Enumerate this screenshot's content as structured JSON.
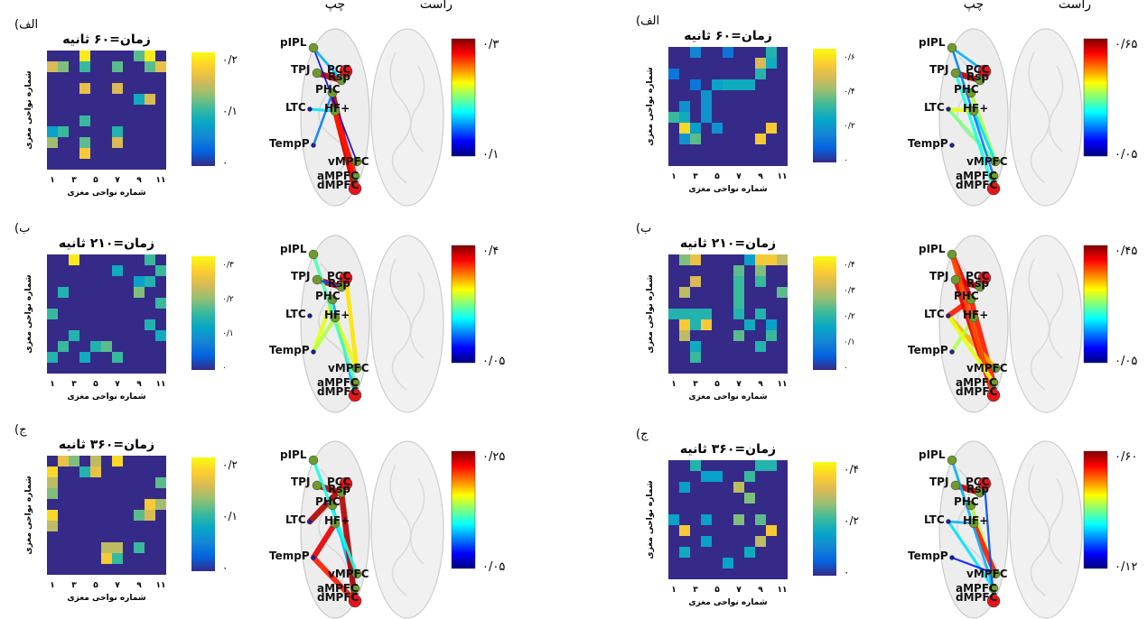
{
  "labels": {
    "ylabel": "شماره نواحی مغزی",
    "xlabel": "شماره نواحی مغزی",
    "right_hemisphere": "راست",
    "left_hemisphere": "چپ",
    "xticks": [
      "۱",
      "۳",
      "۵",
      "۷",
      "۹",
      "۱۱"
    ]
  },
  "regions": [
    "pIPL",
    "PCC",
    "TPJ",
    "Rsp",
    "PHC",
    "LTC",
    "HF+",
    "TempP",
    "vMPFC",
    "aMPFC",
    "dMPFC"
  ],
  "colormaps": {
    "parula": [
      "#352a87",
      "#0363e1",
      "#1485d4",
      "#06a7c6",
      "#38b99e",
      "#92bf73",
      "#d9ba56",
      "#fcce2e",
      "#f9fb0e"
    ],
    "jet": [
      "#00007f",
      "#0000ff",
      "#007fff",
      "#00ffff",
      "#7fff7f",
      "#ffff00",
      "#ff7f00",
      "#ff0000",
      "#7f0000"
    ]
  },
  "chart_data": [
    {
      "type": "heatmap",
      "panel_tag": "(الف",
      "title": "زمان=۶۰ ثانیه",
      "colorbar_ticks": [
        "۰/۲",
        "۰/۱",
        "۰"
      ],
      "cells": [
        [
          0,
          3,
          0.95
        ],
        [
          0,
          8,
          0.55
        ],
        [
          0,
          9,
          0.95
        ],
        [
          1,
          0,
          0.75
        ],
        [
          1,
          1,
          0.6
        ],
        [
          1,
          3,
          0.5
        ],
        [
          1,
          6,
          0.55
        ],
        [
          1,
          9,
          0.55
        ],
        [
          1,
          10,
          0.8
        ],
        [
          3,
          3,
          0.8
        ],
        [
          3,
          6,
          0.75
        ],
        [
          4,
          8,
          0.4
        ],
        [
          4,
          9,
          0.75
        ],
        [
          6,
          3,
          0.5
        ],
        [
          7,
          0,
          0.35
        ],
        [
          7,
          1,
          0.5
        ],
        [
          7,
          6,
          0.45
        ],
        [
          8,
          0,
          0.65
        ],
        [
          8,
          3,
          0.55
        ],
        [
          8,
          6,
          0.75
        ],
        [
          9,
          3,
          0.85
        ]
      ]
    },
    {
      "type": "network",
      "colorbar_max": "۰/۳",
      "colorbar_min": "۰/۱",
      "edges": [
        [
          "TPJ",
          "Rsp",
          0.95
        ],
        [
          "PHC",
          "dMPFC",
          0.97
        ],
        [
          "HF+",
          "dMPFC",
          0.9
        ],
        [
          "LTC",
          "HF+",
          0.35
        ],
        [
          "TempP",
          "PHC",
          0.25
        ],
        [
          "pIPL",
          "vMPFC",
          0.1
        ],
        [
          "pIPL",
          "Rsp",
          0.3
        ],
        [
          "HF+",
          "aMPFC",
          0.85
        ]
      ]
    },
    {
      "type": "heatmap",
      "panel_tag": "(الف",
      "title": "زمان=۶۰ ثانیه",
      "colorbar_ticks": [
        "۰/۶",
        "۰/۴",
        "۰/۲",
        "۰"
      ],
      "cells": [
        [
          0,
          2,
          0.25
        ],
        [
          0,
          5,
          0.2
        ],
        [
          0,
          9,
          0.45
        ],
        [
          1,
          8,
          0.75
        ],
        [
          1,
          9,
          0.4
        ],
        [
          2,
          0,
          0.2
        ],
        [
          2,
          8,
          0.45
        ],
        [
          3,
          2,
          0.2
        ],
        [
          3,
          4,
          0.35
        ],
        [
          3,
          5,
          0.4
        ],
        [
          3,
          6,
          0.4
        ],
        [
          3,
          7,
          0.4
        ],
        [
          4,
          3,
          0.3
        ],
        [
          5,
          1,
          0.3
        ],
        [
          5,
          3,
          0.3
        ],
        [
          6,
          0,
          0.5
        ],
        [
          6,
          1,
          0.4
        ],
        [
          6,
          3,
          0.3
        ],
        [
          7,
          1,
          0.9
        ],
        [
          7,
          2,
          0.35
        ],
        [
          7,
          4,
          0.3
        ],
        [
          7,
          9,
          0.85
        ],
        [
          8,
          1,
          0.3
        ],
        [
          8,
          2,
          0.55
        ],
        [
          8,
          8,
          0.85
        ]
      ]
    },
    {
      "type": "network",
      "colorbar_max": "۰/۶۵",
      "colorbar_min": "۰/۰۵",
      "edges": [
        [
          "TPJ",
          "Rsp",
          0.95
        ],
        [
          "pIPL",
          "PCC",
          0.3
        ],
        [
          "PHC",
          "vMPFC",
          0.55
        ],
        [
          "LTC",
          "vMPFC",
          0.5
        ],
        [
          "TPJ",
          "dMPFC",
          0.4
        ],
        [
          "HF+",
          "vMPFC",
          0.35
        ],
        [
          "pIPL",
          "aMPFC",
          0.25
        ],
        [
          "LTC",
          "HF+",
          0.6
        ]
      ]
    },
    {
      "type": "heatmap",
      "panel_tag": "(ب",
      "title": "زمان=۲۱۰ ثانیه",
      "colorbar_ticks": [
        "۰/۳",
        "۰/۲",
        "۰/۱",
        "۰"
      ],
      "cells": [
        [
          0,
          2,
          0.95
        ],
        [
          0,
          9,
          0.5
        ],
        [
          1,
          6,
          0.4
        ],
        [
          1,
          10,
          0.5
        ],
        [
          2,
          8,
          0.35
        ],
        [
          2,
          9,
          0.45
        ],
        [
          3,
          1,
          0.45
        ],
        [
          3,
          8,
          0.6
        ],
        [
          4,
          10,
          0.5
        ],
        [
          5,
          0,
          0.5
        ],
        [
          6,
          9,
          0.45
        ],
        [
          7,
          2,
          0.45
        ],
        [
          7,
          10,
          0.4
        ],
        [
          8,
          1,
          0.5
        ],
        [
          8,
          4,
          0.45
        ],
        [
          8,
          5,
          0.55
        ],
        [
          9,
          0,
          0.45
        ],
        [
          9,
          3,
          0.4
        ],
        [
          9,
          6,
          0.5
        ]
      ]
    },
    {
      "type": "network",
      "colorbar_max": "۰/۴",
      "colorbar_min": "۰/۰۵",
      "edges": [
        [
          "TPJ",
          "Rsp",
          0.95
        ],
        [
          "PHC",
          "dMPFC",
          0.3
        ],
        [
          "HF+",
          "vMPFC",
          0.6
        ],
        [
          "TempP",
          "PHC",
          0.6
        ],
        [
          "TempP",
          "HF+",
          0.55
        ],
        [
          "pIPL",
          "aMPFC",
          0.45
        ],
        [
          "PCC",
          "vMPFC",
          0.65
        ],
        [
          "TPJ",
          "Rsp",
          0.2
        ]
      ]
    },
    {
      "type": "heatmap",
      "panel_tag": "(ب",
      "title": "زمان=۲۱۰ ثانیه",
      "colorbar_ticks": [
        "۰/۴",
        "۰/۳",
        "۰/۲",
        "۰/۱",
        "۰"
      ],
      "cells": [
        [
          0,
          1,
          0.6
        ],
        [
          0,
          2,
          0.8
        ],
        [
          0,
          7,
          0.35
        ],
        [
          0,
          8,
          0.85
        ],
        [
          0,
          9,
          0.85
        ],
        [
          0,
          10,
          0.7
        ],
        [
          1,
          6,
          0.55
        ],
        [
          1,
          8,
          0.6
        ],
        [
          2,
          2,
          0.75
        ],
        [
          2,
          6,
          0.5
        ],
        [
          2,
          8,
          0.5
        ],
        [
          3,
          1,
          0.7
        ],
        [
          3,
          6,
          0.5
        ],
        [
          3,
          10,
          0.55
        ],
        [
          4,
          6,
          0.5
        ],
        [
          5,
          0,
          0.45
        ],
        [
          5,
          1,
          0.45
        ],
        [
          5,
          2,
          0.45
        ],
        [
          5,
          3,
          0.45
        ],
        [
          5,
          6,
          0.45
        ],
        [
          5,
          8,
          0.45
        ],
        [
          6,
          1,
          0.85
        ],
        [
          6,
          2,
          0.45
        ],
        [
          6,
          3,
          0.85
        ],
        [
          6,
          7,
          0.4
        ],
        [
          6,
          9,
          0.35
        ],
        [
          7,
          1,
          0.7
        ],
        [
          7,
          6,
          0.55
        ],
        [
          7,
          9,
          0.5
        ],
        [
          8,
          2,
          0.4
        ],
        [
          8,
          8,
          0.45
        ],
        [
          9,
          2,
          0.5
        ]
      ]
    },
    {
      "type": "network",
      "colorbar_max": "۰/۴۵",
      "colorbar_min": "۰/۰۵",
      "edges": [
        [
          "TPJ",
          "Rsp",
          0.95
        ],
        [
          "pIPL",
          "PHC",
          0.9
        ],
        [
          "PHC",
          "aMPFC",
          0.85
        ],
        [
          "LTC",
          "vMPFC",
          0.7
        ],
        [
          "LTC",
          "PHC",
          0.85
        ],
        [
          "TempP",
          "HF+",
          0.55
        ],
        [
          "TPJ",
          "dMPFC",
          0.9
        ],
        [
          "pIPL",
          "dMPFC",
          0.8
        ],
        [
          "LTC",
          "aMPFC",
          0.6
        ]
      ]
    },
    {
      "type": "heatmap",
      "panel_tag": "(ج",
      "title": "زمان=۳۶۰ ثانیه",
      "colorbar_ticks": [
        "۰/۲",
        "۰/۱",
        "۰"
      ],
      "cells": [
        [
          0,
          1,
          0.8
        ],
        [
          0,
          2,
          0.6
        ],
        [
          0,
          4,
          0.7
        ],
        [
          0,
          6,
          0.9
        ],
        [
          1,
          0,
          0.9
        ],
        [
          1,
          3,
          0.45
        ],
        [
          1,
          4,
          0.8
        ],
        [
          2,
          0,
          0.7
        ],
        [
          2,
          10,
          0.55
        ],
        [
          3,
          0,
          0.6
        ],
        [
          4,
          9,
          0.85
        ],
        [
          4,
          10,
          0.65
        ],
        [
          5,
          0,
          0.9
        ],
        [
          5,
          8,
          0.55
        ],
        [
          5,
          9,
          0.75
        ],
        [
          6,
          0,
          0.7
        ],
        [
          8,
          5,
          0.7
        ],
        [
          8,
          6,
          0.7
        ],
        [
          8,
          8,
          0.5
        ],
        [
          9,
          5,
          0.85
        ],
        [
          9,
          6,
          0.5
        ]
      ]
    },
    {
      "type": "network",
      "colorbar_max": "۰/۲۵",
      "colorbar_min": "۰/۰۵",
      "edges": [
        [
          "TPJ",
          "Rsp",
          0.95
        ],
        [
          "LTC",
          "PCC",
          0.95
        ],
        [
          "TempP",
          "HF+",
          0.9
        ],
        [
          "TempP",
          "dMPFC",
          0.85
        ],
        [
          "PHC",
          "aMPFC",
          0.3
        ],
        [
          "HF+",
          "vMPFC",
          0.35
        ],
        [
          "Rsp",
          "dMPFC",
          0.95
        ],
        [
          "pIPL",
          "vMPFC",
          0.4
        ]
      ]
    },
    {
      "type": "heatmap",
      "panel_tag": "(ج",
      "title": "زمان=۳۶۰ ثانیه",
      "colorbar_ticks": [
        "۰/۴",
        "۰/۲",
        "۰"
      ],
      "cells": [
        [
          0,
          2,
          0.45
        ],
        [
          0,
          8,
          0.45
        ],
        [
          0,
          9,
          0.45
        ],
        [
          1,
          3,
          0.35
        ],
        [
          1,
          4,
          0.35
        ],
        [
          1,
          7,
          0.5
        ],
        [
          2,
          1,
          0.35
        ],
        [
          2,
          6,
          0.7
        ],
        [
          3,
          7,
          0.6
        ],
        [
          5,
          0,
          0.35
        ],
        [
          5,
          3,
          0.35
        ],
        [
          5,
          6,
          0.6
        ],
        [
          5,
          8,
          0.55
        ],
        [
          6,
          1,
          0.85
        ],
        [
          6,
          9,
          0.85
        ],
        [
          7,
          3,
          0.35
        ],
        [
          7,
          8,
          0.7
        ],
        [
          8,
          1,
          0.4
        ],
        [
          8,
          7,
          0.4
        ],
        [
          9,
          5,
          0.35
        ]
      ]
    },
    {
      "type": "network",
      "colorbar_max": "۰/۶۰",
      "colorbar_min": "۰/۱۲",
      "edges": [
        [
          "TPJ",
          "Rsp",
          0.95
        ],
        [
          "PHC",
          "vMPFC",
          0.55
        ],
        [
          "LTC",
          "HF+",
          0.3
        ],
        [
          "HF+",
          "vMPFC",
          0.85
        ],
        [
          "LTC",
          "aMPFC",
          0.35
        ],
        [
          "pIPL",
          "aMPFC",
          0.3
        ],
        [
          "PCC",
          "dMPFC",
          0.2
        ],
        [
          "TempP",
          "vMPFC",
          0.15
        ]
      ]
    }
  ]
}
